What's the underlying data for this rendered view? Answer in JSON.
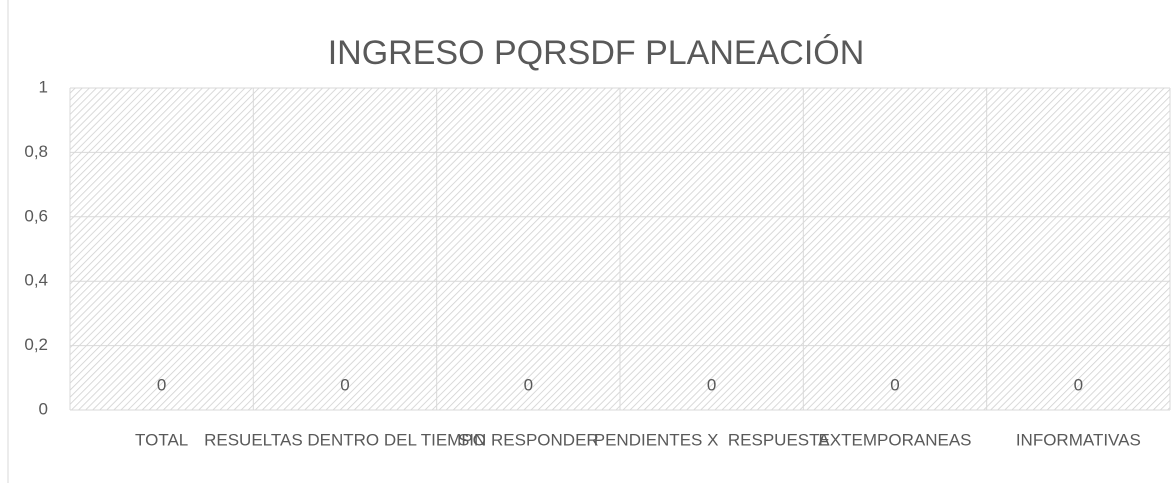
{
  "chart_data": {
    "type": "bar",
    "title": "INGRESO  PQRSDF PLANEACIÓN",
    "categories": [
      "TOTAL",
      "RESUELTAS DENTRO DEL TIEMPO",
      "SIN RESPONDER",
      "PENDIENTES X  RESPUESTA",
      "EXTEMPORANEAS",
      "INFORMATIVAS"
    ],
    "values": [
      0,
      0,
      0,
      0,
      0,
      0
    ],
    "color": "#4472c4",
    "ylim": [
      0,
      1
    ],
    "yticks": [
      0,
      {
        "value": 0.2,
        "label": "0,2"
      },
      {
        "value": 0.4,
        "label": "0,4"
      },
      {
        "value": 0.6,
        "label": "0,6"
      },
      {
        "value": 0.8,
        "label": "0,8"
      },
      1
    ],
    "grid": true
  }
}
